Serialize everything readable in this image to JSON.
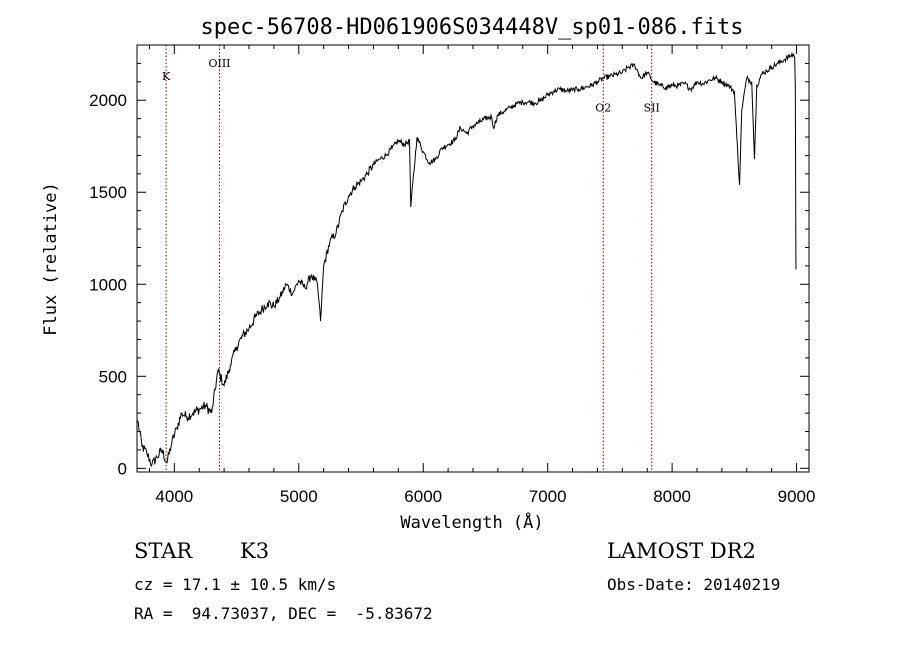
{
  "chart_data": {
    "type": "line",
    "title": "spec-56708-HD061906S034448V_sp01-086.fits",
    "xlabel": "Wavelength (Å)",
    "ylabel": "Flux (relative)",
    "xlim": [
      3700,
      9100
    ],
    "ylim": [
      -20,
      2300
    ],
    "x_ticks": [
      4000,
      5000,
      6000,
      7000,
      8000,
      9000
    ],
    "y_ticks": [
      0,
      500,
      1000,
      1500,
      2000
    ],
    "grid": false,
    "line_color": "#000000",
    "marker_color": "#8b0000",
    "spectral_lines": [
      {
        "name": "K",
        "wavelength": 3934,
        "label_flux": 2110
      },
      {
        "name": "OIII",
        "wavelength": 4363,
        "label_flux": 2180
      },
      {
        "name": "O2",
        "wavelength": 7447,
        "label_flux": 1940
      },
      {
        "name": "SII",
        "wavelength": 7836,
        "label_flux": 1940
      }
    ],
    "series": [
      {
        "x": [
          3705,
          3740,
          3780,
          3820,
          3860,
          3900,
          3940,
          3980,
          4020,
          4060,
          4100,
          4150,
          4200,
          4250,
          4300,
          4350,
          4400,
          4450,
          4500,
          4550,
          4600,
          4650,
          4700,
          4750,
          4800,
          4850,
          4900,
          4950,
          5000,
          5050,
          5100,
          5150,
          5175,
          5200,
          5250,
          5300,
          5350,
          5400,
          5450,
          5500,
          5550,
          5600,
          5650,
          5700,
          5750,
          5800,
          5850,
          5890,
          5900,
          5950,
          6000,
          6050,
          6100,
          6150,
          6200,
          6250,
          6300,
          6350,
          6400,
          6450,
          6500,
          6550,
          6563,
          6600,
          6650,
          6700,
          6750,
          6800,
          6850,
          6900,
          6950,
          7000,
          7050,
          7100,
          7150,
          7200,
          7250,
          7300,
          7350,
          7400,
          7450,
          7500,
          7550,
          7600,
          7650,
          7700,
          7750,
          7800,
          7850,
          7900,
          7950,
          8000,
          8050,
          8100,
          8150,
          8200,
          8250,
          8300,
          8350,
          8400,
          8450,
          8500,
          8520,
          8542,
          8560,
          8600,
          8640,
          8662,
          8680,
          8720,
          8760,
          8800,
          8850,
          8900,
          8950,
          8975,
          8985,
          8990,
          8995
        ],
        "y": [
          260,
          120,
          80,
          20,
          60,
          100,
          30,
          140,
          220,
          300,
          280,
          300,
          320,
          340,
          300,
          530,
          450,
          560,
          660,
          720,
          760,
          820,
          860,
          900,
          880,
          930,
          1000,
          950,
          1020,
          980,
          1050,
          1000,
          800,
          1100,
          1230,
          1280,
          1400,
          1480,
          1530,
          1560,
          1600,
          1650,
          1680,
          1700,
          1740,
          1780,
          1760,
          1780,
          1420,
          1800,
          1720,
          1660,
          1680,
          1740,
          1760,
          1780,
          1850,
          1820,
          1860,
          1880,
          1900,
          1910,
          1850,
          1920,
          1940,
          1960,
          1980,
          1990,
          1990,
          1985,
          2000,
          2030,
          2050,
          2060,
          2050,
          2055,
          2060,
          2070,
          2080,
          2100,
          2120,
          2130,
          2140,
          2150,
          2180,
          2190,
          2120,
          2150,
          2100,
          2080,
          2070,
          2080,
          2080,
          2090,
          2060,
          2100,
          2090,
          2110,
          2120,
          2100,
          2080,
          2050,
          1800,
          1540,
          1950,
          2120,
          2100,
          1680,
          2080,
          2140,
          2160,
          2180,
          2200,
          2220,
          2240,
          2250,
          2230,
          2080,
          1080
        ]
      }
    ]
  },
  "info": {
    "object_type": "STAR",
    "subclass": "K3",
    "survey": "LAMOST DR2",
    "redshift": "cz = 17.1 ± 10.5 km/s",
    "obs_date": "Obs-Date: 20140219",
    "coords": "RA =  94.73037, DEC =  -5.83672"
  }
}
